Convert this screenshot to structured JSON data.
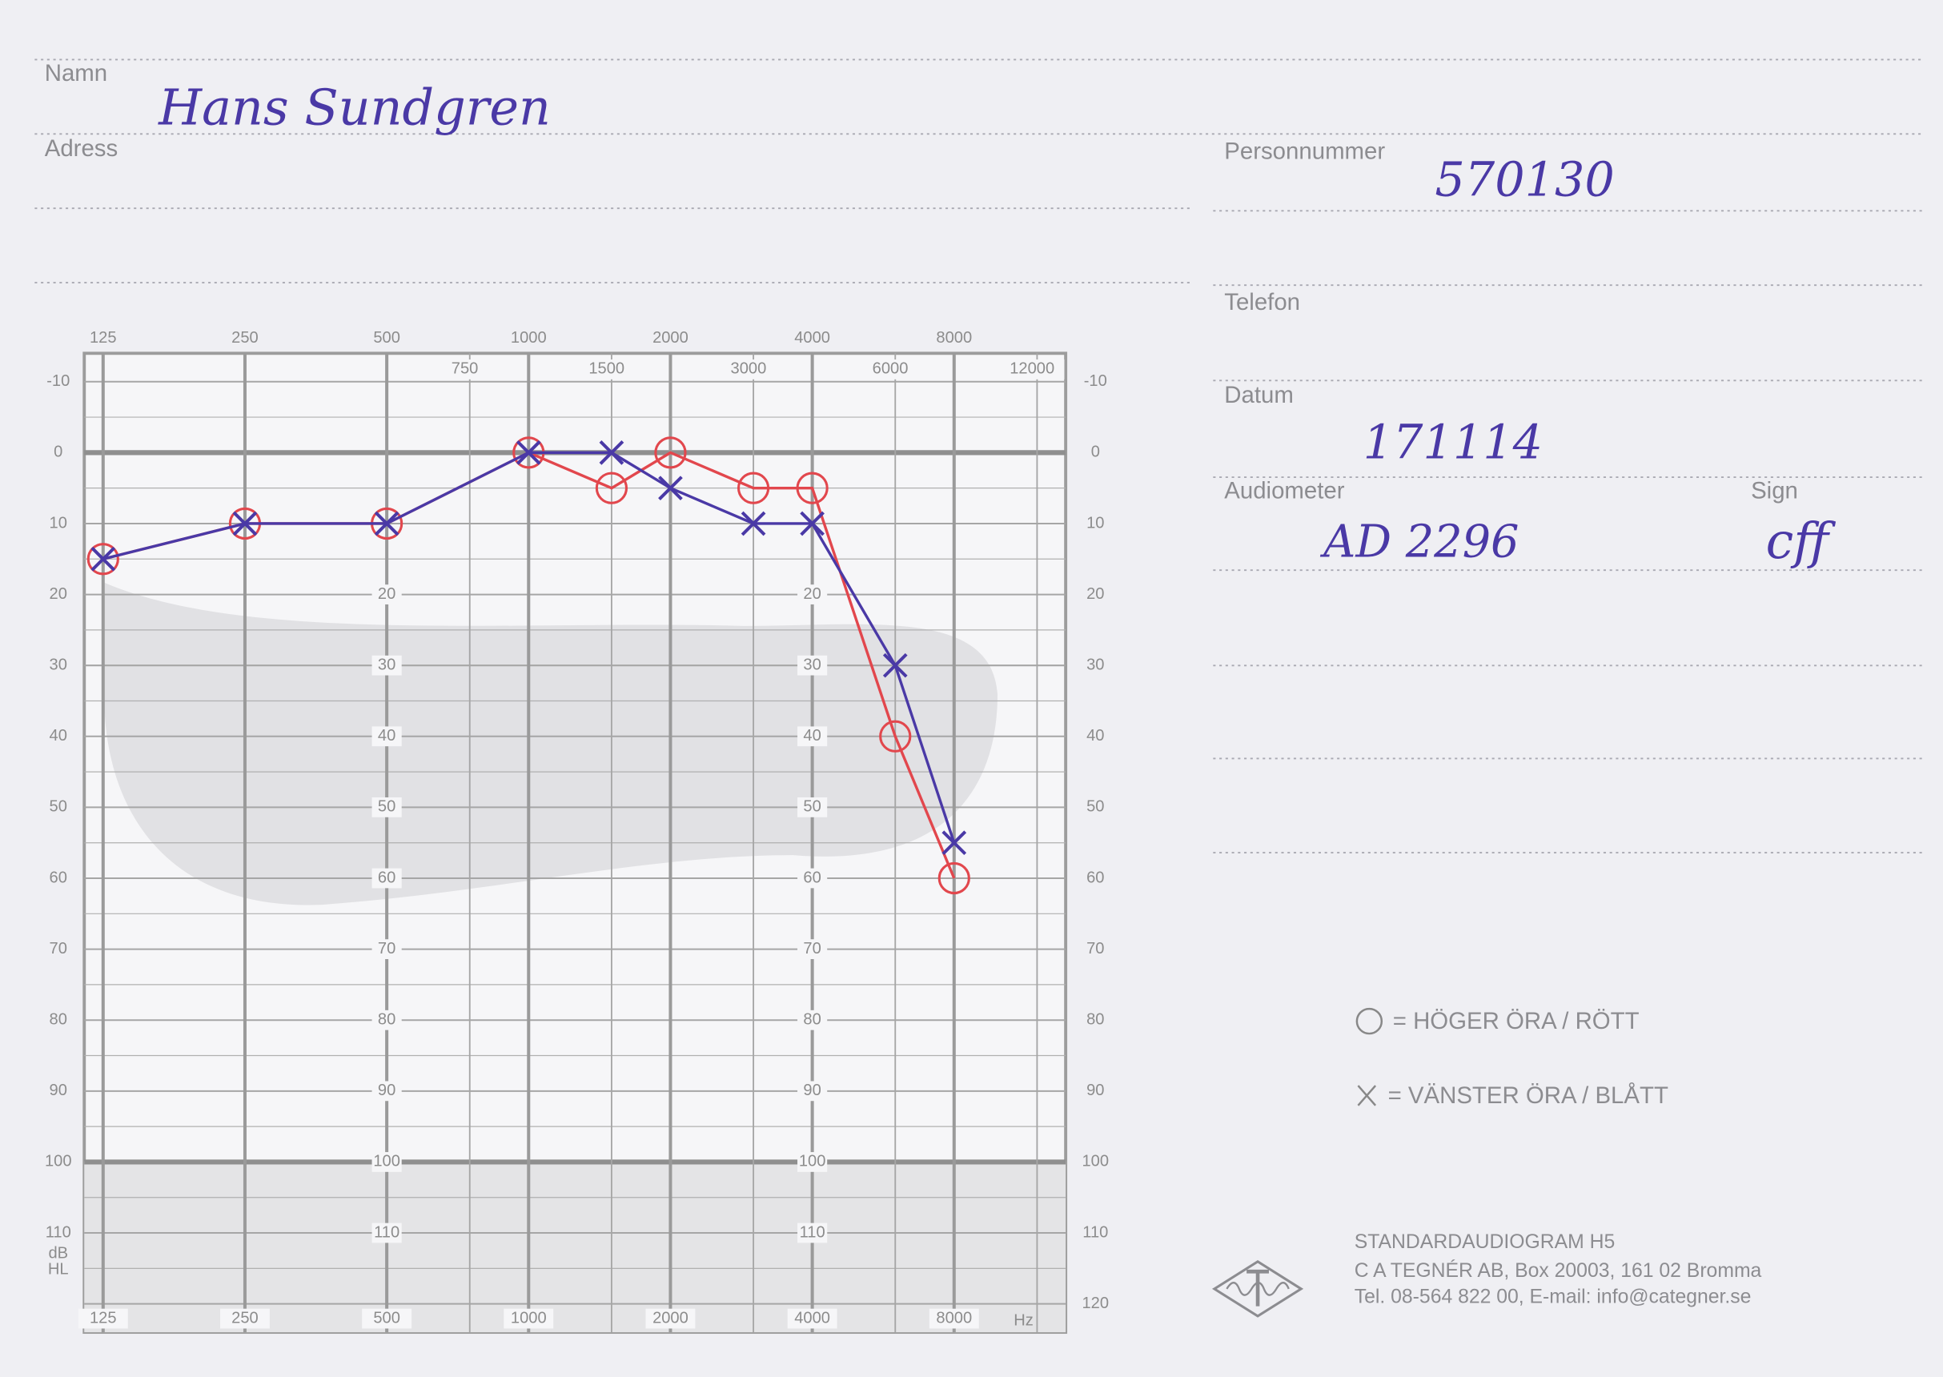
{
  "form": {
    "name_label": "Namn",
    "name": "Hans Sundgren",
    "address_label": "Adress",
    "personnummer_label": "Personnummer",
    "personnummer": "570130",
    "telefon_label": "Telefon",
    "datum_label": "Datum",
    "datum": "171114",
    "audiometer_label": "Audiometer",
    "audiometer": "AD 2296",
    "sign_label": "Sign",
    "sign": "cff"
  },
  "footer": {
    "lines": [
      "STANDARDAUDIOGRAM H5",
      "C A TEGNÉR AB, Box 20003, 161 02 Bromma",
      "Tel. 08-564 822 00, E-mail: info@categner.se"
    ]
  },
  "chart_data": {
    "type": "line",
    "x": [
      125,
      250,
      500,
      1000,
      1500,
      2000,
      3000,
      4000,
      6000,
      8000
    ],
    "xscale": "log",
    "xlim": [
      114,
      13800
    ],
    "xticks": [
      125,
      250,
      500,
      1000,
      2000,
      4000,
      8000
    ],
    "xticks_minor": [
      750,
      1500,
      3000,
      6000,
      12000
    ],
    "xlabel": "Hz",
    "ylabel": "dB HL",
    "ylim": [
      -14,
      124
    ],
    "yreverse": true,
    "yticks": [
      -10,
      0,
      10,
      20,
      30,
      40,
      50,
      60,
      70,
      80,
      90,
      100,
      110,
      120
    ],
    "yticks_minor": [
      -5,
      5,
      15,
      25,
      35,
      45,
      55,
      65,
      75,
      85,
      95,
      105,
      115
    ],
    "grid": true,
    "series": [
      {
        "name": "= HÖGER ÖRA / RÖTT",
        "color": "#e2474d",
        "marker": "o",
        "values": [
          15,
          10,
          10,
          0,
          5,
          0,
          5,
          5,
          40,
          60
        ]
      },
      {
        "name": "= VÄNSTER ÖRA / BLÅTT",
        "color": "#4a39a6",
        "marker": "x",
        "values": [
          15,
          10,
          10,
          0,
          0,
          5,
          10,
          10,
          30,
          55
        ]
      }
    ]
  }
}
